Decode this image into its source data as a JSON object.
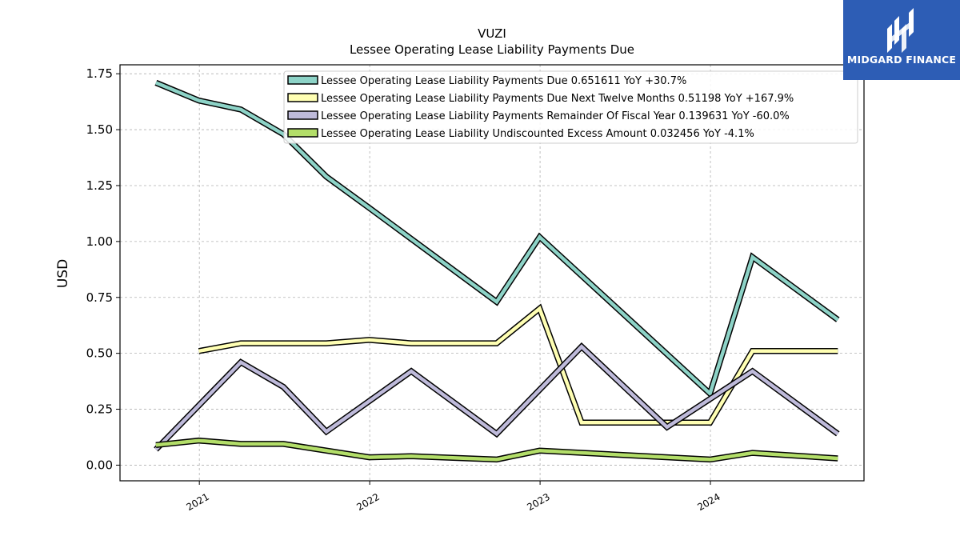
{
  "brand": {
    "name": "MIDGARD FINANCE",
    "bg_color": "#2d5db5"
  },
  "chart_data": {
    "type": "line",
    "title": "VUZI",
    "subtitle": "Lessee Operating Lease Liability Payments Due",
    "xlabel": "",
    "ylabel": "USD",
    "xlim": [
      "2020-07-15",
      "2024-11-25"
    ],
    "ylim": [
      -0.07,
      1.79
    ],
    "yticks": [
      0.0,
      0.25,
      0.5,
      0.75,
      1.0,
      1.25,
      1.5,
      1.75
    ],
    "ytick_labels": [
      "0.00",
      "0.25",
      "0.50",
      "0.75",
      "1.00",
      "1.25",
      "1.50",
      "1.75"
    ],
    "xticks": [
      "2021-01-01",
      "2022-01-01",
      "2023-01-01",
      "2024-01-01"
    ],
    "xtick_labels": [
      "2021",
      "2022",
      "2023",
      "2024"
    ],
    "grid": true,
    "legend_position": "top-center",
    "series": [
      {
        "name": "Lessee Operating Lease Liability Payments Due  0.651611 YoY +30.7%",
        "color": "#8dd3c7",
        "points": [
          [
            "2020-09-30",
            1.71
          ],
          [
            "2020-12-31",
            1.63
          ],
          [
            "2021-03-31",
            1.59
          ],
          [
            "2021-06-30",
            1.48
          ],
          [
            "2021-09-30",
            1.29
          ],
          [
            "2021-12-31",
            1.15
          ],
          [
            "2022-09-30",
            0.73
          ],
          [
            "2022-12-31",
            1.02
          ],
          [
            "2023-12-31",
            0.32
          ],
          [
            "2024-03-31",
            0.93
          ],
          [
            "2024-09-30",
            0.65
          ]
        ]
      },
      {
        "name": "Lessee Operating Lease Liability Payments Due Next Twelve Months  0.51198 YoY +167.9%",
        "color": "#ffffb3",
        "points": [
          [
            "2020-12-31",
            0.51
          ],
          [
            "2021-03-31",
            0.545
          ],
          [
            "2021-09-30",
            0.545
          ],
          [
            "2021-12-31",
            0.56
          ],
          [
            "2022-03-31",
            0.545
          ],
          [
            "2022-09-30",
            0.545
          ],
          [
            "2022-12-31",
            0.7
          ],
          [
            "2023-03-31",
            0.19
          ],
          [
            "2023-12-31",
            0.19
          ],
          [
            "2024-03-31",
            0.51
          ],
          [
            "2024-09-30",
            0.51
          ]
        ]
      },
      {
        "name": "Lessee Operating Lease Liability Payments Remainder Of Fiscal Year  0.139631 YoY -60.0%",
        "color": "#bebada",
        "points": [
          [
            "2020-09-30",
            0.07
          ],
          [
            "2021-03-31",
            0.46
          ],
          [
            "2021-06-30",
            0.35
          ],
          [
            "2021-09-30",
            0.15
          ],
          [
            "2022-03-31",
            0.42
          ],
          [
            "2022-09-30",
            0.14
          ],
          [
            "2023-03-31",
            0.53
          ],
          [
            "2023-09-30",
            0.17
          ],
          [
            "2024-03-31",
            0.42
          ],
          [
            "2024-09-30",
            0.14
          ]
        ]
      },
      {
        "name": "Lessee Operating Lease Liability Undiscounted Excess Amount  0.032456 YoY -4.1%",
        "color": "#b3de69",
        "points": [
          [
            "2020-09-30",
            0.09
          ],
          [
            "2020-12-31",
            0.11
          ],
          [
            "2021-03-31",
            0.095
          ],
          [
            "2021-06-30",
            0.095
          ],
          [
            "2021-12-31",
            0.035
          ],
          [
            "2022-03-31",
            0.04
          ],
          [
            "2022-09-30",
            0.025
          ],
          [
            "2022-12-31",
            0.065
          ],
          [
            "2023-12-31",
            0.025
          ],
          [
            "2024-03-31",
            0.055
          ],
          [
            "2024-09-30",
            0.03
          ]
        ]
      }
    ]
  }
}
